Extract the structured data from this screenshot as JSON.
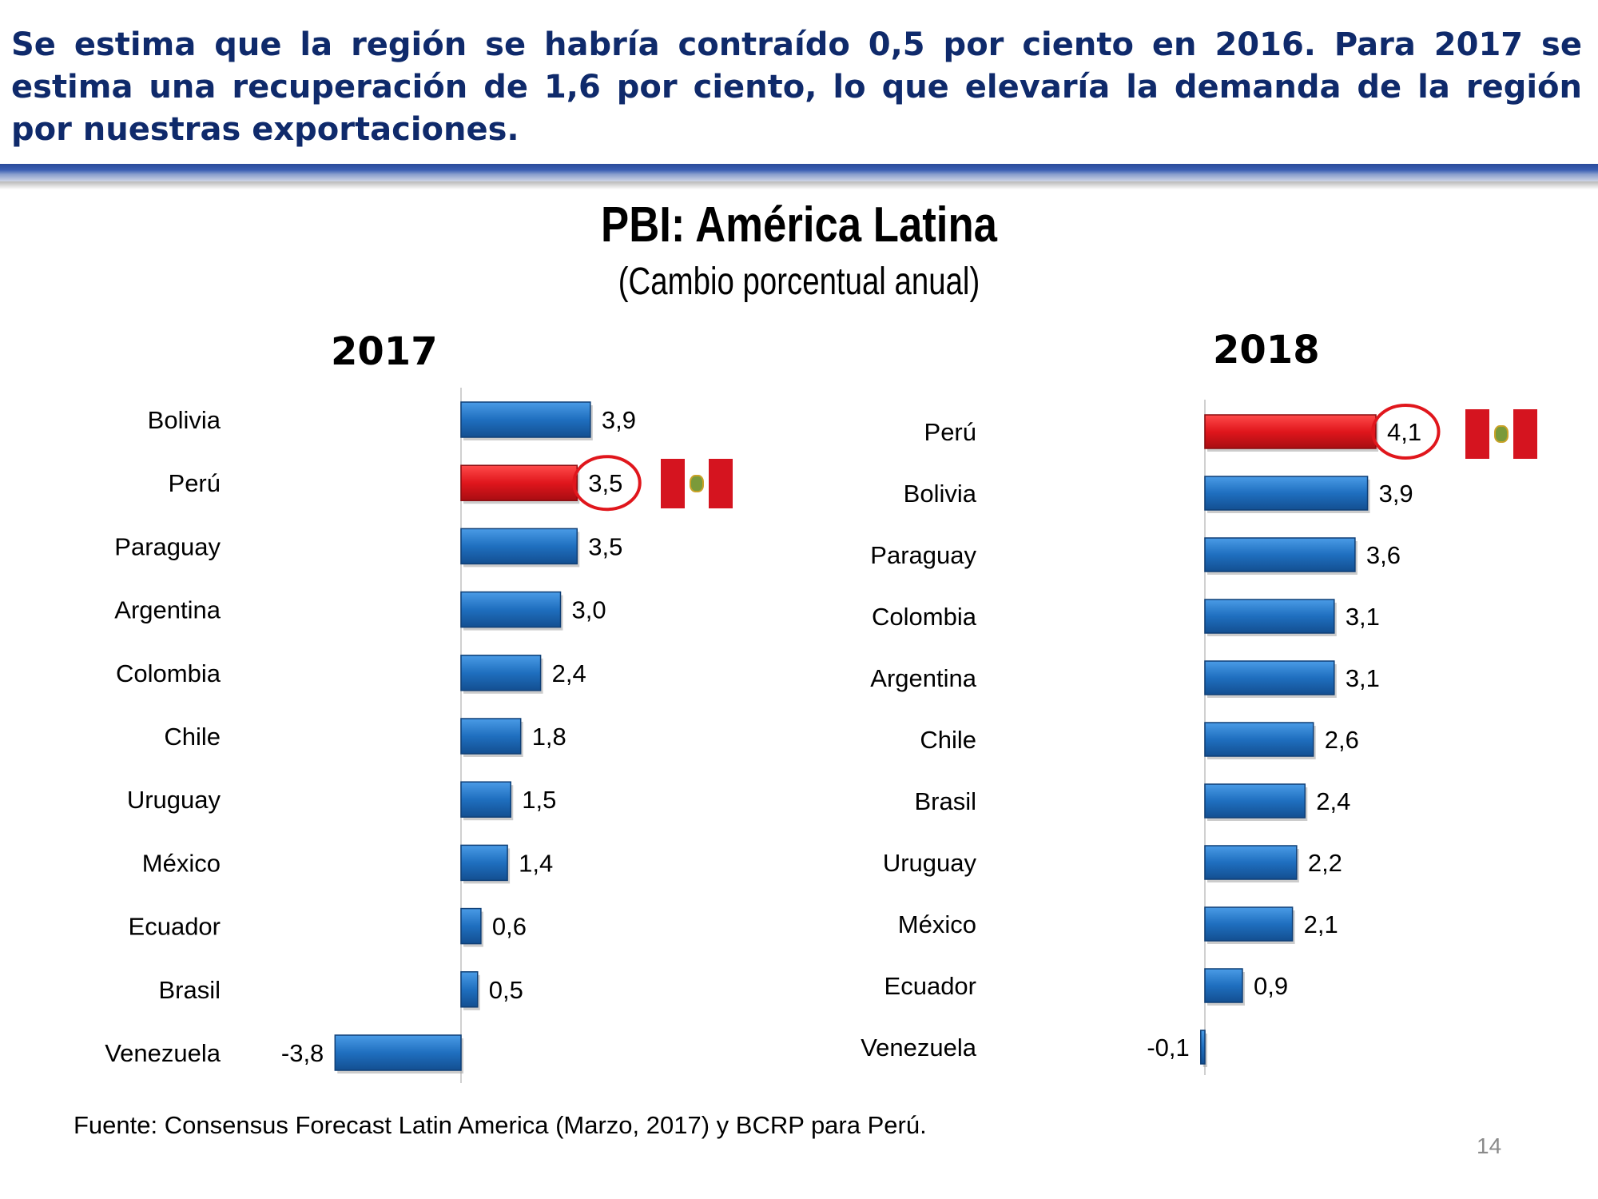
{
  "headline": "Se estima que la región se habría contraído 0,5 por ciento en 2016. Para 2017 se estima una recuperación de 1,6 por ciento, lo que elevaría la demanda de la región por nuestras exportaciones.",
  "chart_title": "PBI: América Latina",
  "chart_subtitle": "(Cambio porcentual anual)",
  "source": "Fuente: Consensus Forecast Latin America (Marzo, 2017) y BCRP para Perú.",
  "page_number": "14",
  "colors": {
    "bar": "#1f6fbf",
    "highlight": "#e0161c",
    "headline": "#0f2a6b"
  },
  "chart_data": [
    {
      "type": "bar",
      "orientation": "horizontal",
      "title": "2017",
      "categories": [
        "Bolivia",
        "Perú",
        "Paraguay",
        "Argentina",
        "Colombia",
        "Chile",
        "Uruguay",
        "México",
        "Ecuador",
        "Brasil",
        "Venezuela"
      ],
      "values": [
        3.9,
        3.5,
        3.5,
        3.0,
        2.4,
        1.8,
        1.5,
        1.4,
        0.6,
        0.5,
        -3.8
      ],
      "labels": [
        "3,9",
        "3,5",
        "3,5",
        "3,0",
        "2,4",
        "1,8",
        "1,5",
        "1,4",
        "0,6",
        "0,5",
        "-3,8"
      ],
      "highlight": "Perú",
      "xlim": [
        -3.8,
        3.9
      ]
    },
    {
      "type": "bar",
      "orientation": "horizontal",
      "title": "2018",
      "categories": [
        "Perú",
        "Bolivia",
        "Paraguay",
        "Colombia",
        "Argentina",
        "Chile",
        "Brasil",
        "Uruguay",
        "México",
        "Ecuador",
        "Venezuela"
      ],
      "values": [
        4.1,
        3.9,
        3.6,
        3.1,
        3.1,
        2.6,
        2.4,
        2.2,
        2.1,
        0.9,
        -0.1
      ],
      "labels": [
        "4,1",
        "3,9",
        "3,6",
        "3,1",
        "3,1",
        "2,6",
        "2,4",
        "2,2",
        "2,1",
        "0,9",
        "-0,1"
      ],
      "highlight": "Perú",
      "xlim": [
        -0.1,
        4.1
      ]
    }
  ]
}
